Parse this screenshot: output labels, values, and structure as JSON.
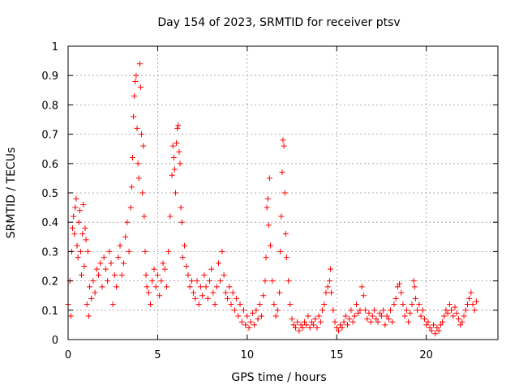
{
  "chart_data": {
    "type": "scatter",
    "title": "Day 154 of 2023, SRMTID for receiver ptsv",
    "xlabel": "GPS time / hours",
    "ylabel": "SRMTID / TECUs",
    "xlim": [
      0,
      24
    ],
    "ylim": [
      0,
      1
    ],
    "xticks": [
      0,
      5,
      10,
      15,
      20
    ],
    "yticks": [
      0,
      0.1,
      0.2,
      0.3,
      0.4,
      0.5,
      0.6,
      0.7,
      0.8,
      0.9,
      1
    ],
    "ytick_labels": [
      "0",
      "0.1",
      "0.2",
      "0.3",
      "0.4",
      "0.5",
      "0.6",
      "0.7",
      "0.8",
      "0.9",
      "1"
    ],
    "grid": true,
    "marker": "+",
    "color": "#ff0000",
    "series": [
      {
        "name": "SRMTID",
        "points": [
          [
            0.0,
            0.12
          ],
          [
            0.1,
            0.2
          ],
          [
            0.15,
            0.08
          ],
          [
            0.2,
            0.3
          ],
          [
            0.25,
            0.38
          ],
          [
            0.3,
            0.42
          ],
          [
            0.35,
            0.36
          ],
          [
            0.4,
            0.45
          ],
          [
            0.45,
            0.48
          ],
          [
            0.5,
            0.32
          ],
          [
            0.55,
            0.28
          ],
          [
            0.6,
            0.4
          ],
          [
            0.65,
            0.44
          ],
          [
            0.7,
            0.3
          ],
          [
            0.75,
            0.22
          ],
          [
            0.8,
            0.36
          ],
          [
            0.85,
            0.46
          ],
          [
            0.9,
            0.25
          ],
          [
            0.95,
            0.38
          ],
          [
            1.0,
            0.34
          ],
          [
            1.05,
            0.12
          ],
          [
            1.1,
            0.3
          ],
          [
            1.15,
            0.08
          ],
          [
            1.2,
            0.18
          ],
          [
            1.3,
            0.14
          ],
          [
            1.4,
            0.2
          ],
          [
            1.5,
            0.16
          ],
          [
            1.6,
            0.24
          ],
          [
            1.7,
            0.22
          ],
          [
            1.8,
            0.26
          ],
          [
            1.9,
            0.18
          ],
          [
            2.0,
            0.28
          ],
          [
            2.1,
            0.24
          ],
          [
            2.2,
            0.2
          ],
          [
            2.3,
            0.3
          ],
          [
            2.4,
            0.26
          ],
          [
            2.5,
            0.12
          ],
          [
            2.6,
            0.22
          ],
          [
            2.7,
            0.18
          ],
          [
            2.8,
            0.28
          ],
          [
            2.9,
            0.32
          ],
          [
            3.0,
            0.22
          ],
          [
            3.1,
            0.26
          ],
          [
            3.2,
            0.35
          ],
          [
            3.3,
            0.4
          ],
          [
            3.4,
            0.3
          ],
          [
            3.5,
            0.45
          ],
          [
            3.55,
            0.52
          ],
          [
            3.6,
            0.62
          ],
          [
            3.65,
            0.76
          ],
          [
            3.7,
            0.83
          ],
          [
            3.75,
            0.88
          ],
          [
            3.8,
            0.9
          ],
          [
            3.85,
            0.72
          ],
          [
            3.9,
            0.6
          ],
          [
            3.95,
            0.55
          ],
          [
            4.0,
            0.94
          ],
          [
            4.05,
            0.86
          ],
          [
            4.1,
            0.7
          ],
          [
            4.15,
            0.5
          ],
          [
            4.2,
            0.66
          ],
          [
            4.25,
            0.42
          ],
          [
            4.3,
            0.3
          ],
          [
            4.35,
            0.22
          ],
          [
            4.4,
            0.18
          ],
          [
            4.5,
            0.16
          ],
          [
            4.6,
            0.12
          ],
          [
            4.7,
            0.2
          ],
          [
            4.8,
            0.24
          ],
          [
            4.9,
            0.18
          ],
          [
            5.0,
            0.22
          ],
          [
            5.1,
            0.15
          ],
          [
            5.2,
            0.2
          ],
          [
            5.3,
            0.26
          ],
          [
            5.4,
            0.24
          ],
          [
            5.5,
            0.18
          ],
          [
            5.6,
            0.3
          ],
          [
            5.7,
            0.42
          ],
          [
            5.8,
            0.56
          ],
          [
            5.85,
            0.66
          ],
          [
            5.9,
            0.62
          ],
          [
            5.95,
            0.58
          ],
          [
            6.0,
            0.5
          ],
          [
            6.05,
            0.67
          ],
          [
            6.1,
            0.72
          ],
          [
            6.15,
            0.73
          ],
          [
            6.2,
            0.64
          ],
          [
            6.25,
            0.6
          ],
          [
            6.3,
            0.45
          ],
          [
            6.35,
            0.4
          ],
          [
            6.4,
            0.28
          ],
          [
            6.5,
            0.32
          ],
          [
            6.6,
            0.25
          ],
          [
            6.7,
            0.22
          ],
          [
            6.8,
            0.18
          ],
          [
            6.9,
            0.2
          ],
          [
            7.0,
            0.16
          ],
          [
            7.1,
            0.14
          ],
          [
            7.2,
            0.2
          ],
          [
            7.3,
            0.12
          ],
          [
            7.4,
            0.18
          ],
          [
            7.5,
            0.15
          ],
          [
            7.6,
            0.22
          ],
          [
            7.7,
            0.18
          ],
          [
            7.8,
            0.14
          ],
          [
            7.9,
            0.2
          ],
          [
            8.0,
            0.24
          ],
          [
            8.1,
            0.16
          ],
          [
            8.2,
            0.12
          ],
          [
            8.3,
            0.18
          ],
          [
            8.4,
            0.26
          ],
          [
            8.5,
            0.2
          ],
          [
            8.6,
            0.3
          ],
          [
            8.7,
            0.22
          ],
          [
            8.8,
            0.16
          ],
          [
            8.9,
            0.14
          ],
          [
            9.0,
            0.18
          ],
          [
            9.1,
            0.12
          ],
          [
            9.2,
            0.16
          ],
          [
            9.3,
            0.1
          ],
          [
            9.4,
            0.14
          ],
          [
            9.5,
            0.08
          ],
          [
            9.6,
            0.12
          ],
          [
            9.7,
            0.06
          ],
          [
            9.8,
            0.1
          ],
          [
            9.9,
            0.05
          ],
          [
            10.0,
            0.08
          ],
          [
            10.1,
            0.04
          ],
          [
            10.2,
            0.06
          ],
          [
            10.3,
            0.09
          ],
          [
            10.4,
            0.05
          ],
          [
            10.5,
            0.1
          ],
          [
            10.6,
            0.07
          ],
          [
            10.7,
            0.12
          ],
          [
            10.8,
            0.08
          ],
          [
            10.9,
            0.15
          ],
          [
            11.0,
            0.2
          ],
          [
            11.05,
            0.28
          ],
          [
            11.1,
            0.45
          ],
          [
            11.15,
            0.48
          ],
          [
            11.2,
            0.39
          ],
          [
            11.25,
            0.55
          ],
          [
            11.3,
            0.32
          ],
          [
            11.4,
            0.2
          ],
          [
            11.5,
            0.12
          ],
          [
            11.6,
            0.08
          ],
          [
            11.7,
            0.1
          ],
          [
            11.8,
            0.16
          ],
          [
            11.85,
            0.3
          ],
          [
            11.9,
            0.42
          ],
          [
            11.95,
            0.57
          ],
          [
            12.0,
            0.68
          ],
          [
            12.05,
            0.66
          ],
          [
            12.1,
            0.5
          ],
          [
            12.15,
            0.36
          ],
          [
            12.2,
            0.28
          ],
          [
            12.3,
            0.2
          ],
          [
            12.4,
            0.12
          ],
          [
            12.5,
            0.07
          ],
          [
            12.6,
            0.05
          ],
          [
            12.7,
            0.04
          ],
          [
            12.8,
            0.06
          ],
          [
            12.9,
            0.03
          ],
          [
            13.0,
            0.05
          ],
          [
            13.1,
            0.04
          ],
          [
            13.2,
            0.06
          ],
          [
            13.3,
            0.05
          ],
          [
            13.4,
            0.08
          ],
          [
            13.5,
            0.04
          ],
          [
            13.6,
            0.06
          ],
          [
            13.7,
            0.05
          ],
          [
            13.8,
            0.07
          ],
          [
            13.9,
            0.04
          ],
          [
            14.0,
            0.08
          ],
          [
            14.1,
            0.06
          ],
          [
            14.2,
            0.1
          ],
          [
            14.3,
            0.12
          ],
          [
            14.4,
            0.16
          ],
          [
            14.5,
            0.18
          ],
          [
            14.6,
            0.2
          ],
          [
            14.65,
            0.24
          ],
          [
            14.7,
            0.16
          ],
          [
            14.8,
            0.1
          ],
          [
            14.9,
            0.06
          ],
          [
            15.0,
            0.04
          ],
          [
            15.1,
            0.03
          ],
          [
            15.2,
            0.05
          ],
          [
            15.3,
            0.04
          ],
          [
            15.4,
            0.06
          ],
          [
            15.5,
            0.08
          ],
          [
            15.6,
            0.05
          ],
          [
            15.7,
            0.07
          ],
          [
            15.8,
            0.1
          ],
          [
            15.9,
            0.06
          ],
          [
            16.0,
            0.08
          ],
          [
            16.1,
            0.12
          ],
          [
            16.2,
            0.09
          ],
          [
            16.3,
            0.1
          ],
          [
            16.4,
            0.18
          ],
          [
            16.5,
            0.15
          ],
          [
            16.6,
            0.1
          ],
          [
            16.7,
            0.07
          ],
          [
            16.8,
            0.09
          ],
          [
            16.9,
            0.06
          ],
          [
            17.0,
            0.08
          ],
          [
            17.1,
            0.1
          ],
          [
            17.2,
            0.07
          ],
          [
            17.3,
            0.06
          ],
          [
            17.4,
            0.09
          ],
          [
            17.5,
            0.08
          ],
          [
            17.6,
            0.1
          ],
          [
            17.7,
            0.05
          ],
          [
            17.8,
            0.08
          ],
          [
            17.9,
            0.07
          ],
          [
            18.0,
            0.1
          ],
          [
            18.1,
            0.06
          ],
          [
            18.2,
            0.12
          ],
          [
            18.3,
            0.14
          ],
          [
            18.4,
            0.18
          ],
          [
            18.5,
            0.19
          ],
          [
            18.6,
            0.16
          ],
          [
            18.7,
            0.12
          ],
          [
            18.8,
            0.08
          ],
          [
            18.9,
            0.1
          ],
          [
            19.0,
            0.06
          ],
          [
            19.1,
            0.09
          ],
          [
            19.2,
            0.12
          ],
          [
            19.3,
            0.2
          ],
          [
            19.35,
            0.18
          ],
          [
            19.4,
            0.14
          ],
          [
            19.5,
            0.1
          ],
          [
            19.6,
            0.12
          ],
          [
            19.7,
            0.08
          ],
          [
            19.8,
            0.1
          ],
          [
            19.9,
            0.07
          ],
          [
            20.0,
            0.05
          ],
          [
            20.1,
            0.06
          ],
          [
            20.2,
            0.04
          ],
          [
            20.3,
            0.03
          ],
          [
            20.4,
            0.05
          ],
          [
            20.5,
            0.02
          ],
          [
            20.6,
            0.04
          ],
          [
            20.7,
            0.03
          ],
          [
            20.8,
            0.05
          ],
          [
            20.9,
            0.06
          ],
          [
            21.0,
            0.08
          ],
          [
            21.1,
            0.1
          ],
          [
            21.2,
            0.09
          ],
          [
            21.3,
            0.12
          ],
          [
            21.4,
            0.1
          ],
          [
            21.5,
            0.08
          ],
          [
            21.6,
            0.11
          ],
          [
            21.7,
            0.09
          ],
          [
            21.8,
            0.07
          ],
          [
            21.9,
            0.05
          ],
          [
            22.0,
            0.06
          ],
          [
            22.1,
            0.08
          ],
          [
            22.2,
            0.1
          ],
          [
            22.3,
            0.12
          ],
          [
            22.4,
            0.14
          ],
          [
            22.5,
            0.16
          ],
          [
            22.6,
            0.12
          ],
          [
            22.7,
            0.1
          ],
          [
            22.8,
            0.13
          ]
        ]
      }
    ]
  }
}
